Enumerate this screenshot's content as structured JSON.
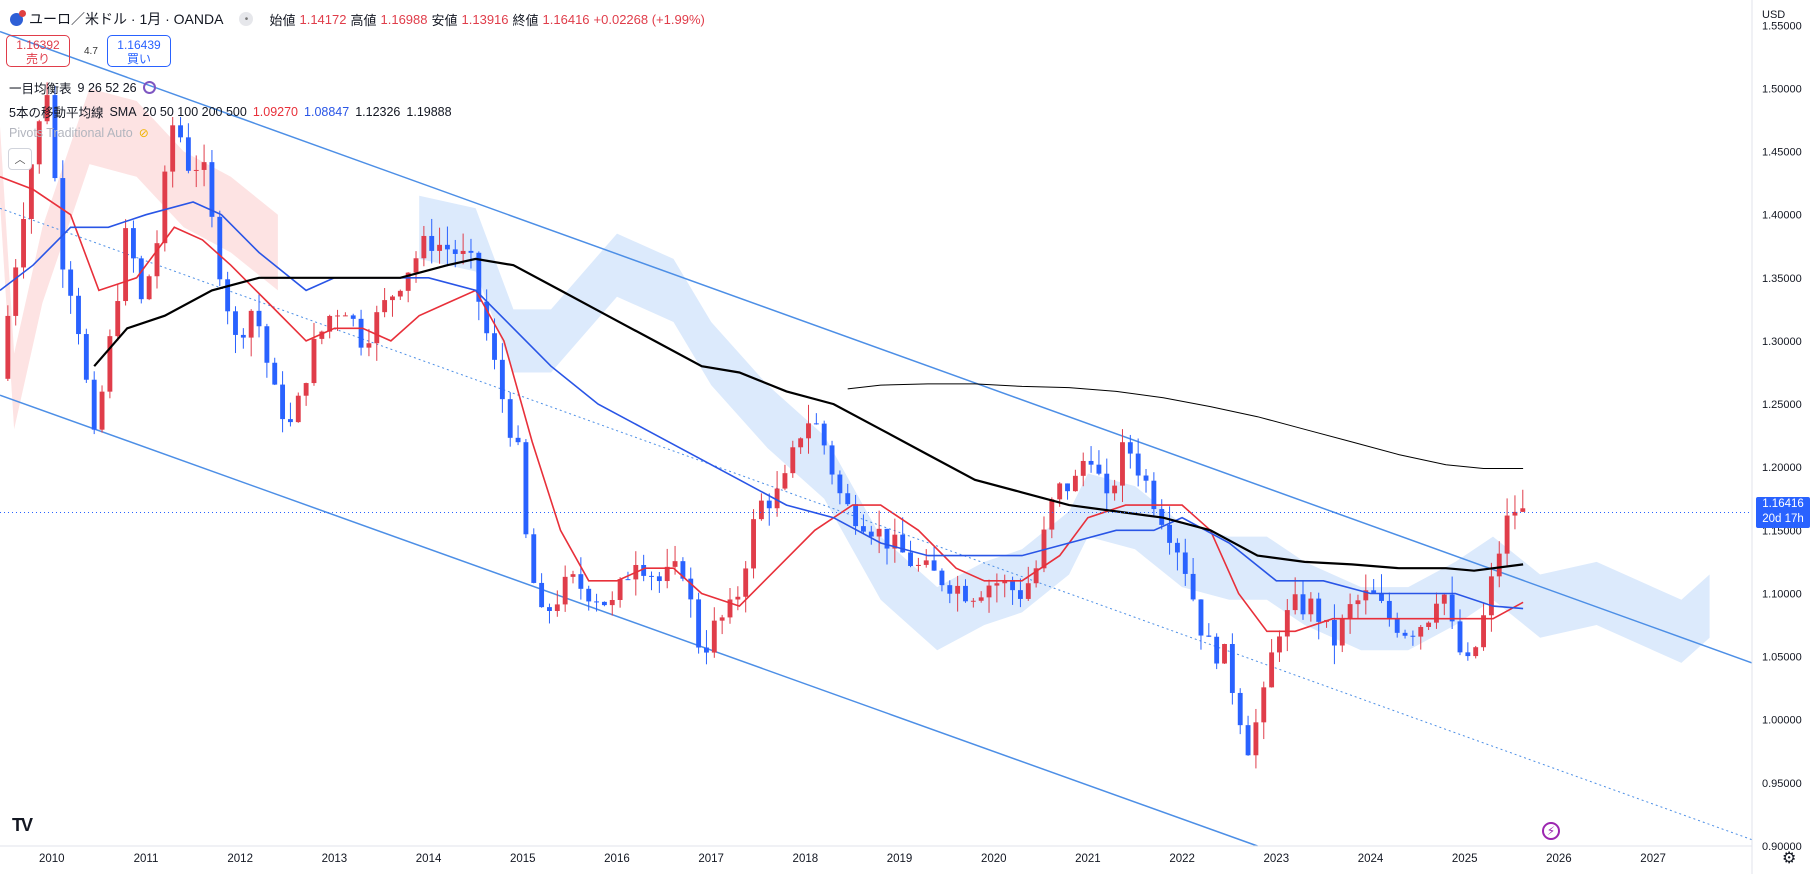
{
  "header": {
    "symbol": "ユーロ／米ドル · 1月 · OANDA",
    "open_label": "始値",
    "open": "1.14172",
    "high_label": "高値",
    "high": "1.16988",
    "low_label": "安値",
    "low": "1.13916",
    "close_label": "終値",
    "close": "1.16416",
    "change": "+0.02268 (+1.99%)"
  },
  "trade": {
    "sell_price": "1.16392",
    "sell_label": "売り",
    "spread": "4.7",
    "buy_price": "1.16439",
    "buy_label": "買い"
  },
  "indicators": {
    "ichimoku_label": "一目均衡表",
    "ichimoku_params": "9 26 52 26",
    "sma_label": "5本の移動平均線",
    "sma_type": "SMA",
    "sma_periods": "20 50 100 200 500",
    "sma_v20": "1.09270",
    "sma_v50": "1.08847",
    "sma_v100": "1.12326",
    "sma_v200": "1.19888",
    "pivots_label": "Pivots Traditional Auto"
  },
  "axis": {
    "currency": "USD"
  },
  "current_price_tag": {
    "price": "1.16416",
    "countdown": "20d 17h"
  },
  "colors": {
    "up": "#e03d4a",
    "down": "#2962ff",
    "sma20": "#e8303a",
    "sma50": "#2955e6",
    "sma100": "#000000",
    "sma200": "#000000",
    "channel": "#4d8fe6",
    "cloud_bull": "#dceafc",
    "cloud_bear": "#fde3e3"
  },
  "chart_data": {
    "type": "candlestick",
    "title": "ユーロ／米ドル · 1月 · OANDA",
    "ylim": [
      0.9,
      1.57
    ],
    "yticks": [
      "1.55000",
      "1.50000",
      "1.45000",
      "1.40000",
      "1.35000",
      "1.30000",
      "1.25000",
      "1.20000",
      "1.15000",
      "1.10000",
      "1.05000",
      "1.00000",
      "0.95000",
      "0.90000"
    ],
    "xticks": [
      "2010",
      "2011",
      "2012",
      "2013",
      "2014",
      "2015",
      "2016",
      "2017",
      "2018",
      "2019",
      "2020",
      "2021",
      "2022",
      "2023",
      "2024",
      "2025",
      "2026",
      "2027"
    ],
    "x_range": [
      2009.45,
      2028.05
    ],
    "close_anchor_points": [
      [
        2009.45,
        1.27
      ],
      [
        2009.55,
        1.33
      ],
      [
        2009.75,
        1.43
      ],
      [
        2009.95,
        1.5
      ],
      [
        2010.1,
        1.37
      ],
      [
        2010.25,
        1.33
      ],
      [
        2010.45,
        1.22
      ],
      [
        2010.6,
        1.29
      ],
      [
        2010.8,
        1.39
      ],
      [
        2010.95,
        1.33
      ],
      [
        2011.1,
        1.37
      ],
      [
        2011.3,
        1.48
      ],
      [
        2011.45,
        1.44
      ],
      [
        2011.6,
        1.44
      ],
      [
        2011.75,
        1.37
      ],
      [
        2011.95,
        1.3
      ],
      [
        2012.15,
        1.33
      ],
      [
        2012.35,
        1.26
      ],
      [
        2012.55,
        1.23
      ],
      [
        2012.75,
        1.29
      ],
      [
        2012.95,
        1.32
      ],
      [
        2013.1,
        1.33
      ],
      [
        2013.3,
        1.3
      ],
      [
        2013.55,
        1.33
      ],
      [
        2013.8,
        1.36
      ],
      [
        2014.0,
        1.38
      ],
      [
        2014.3,
        1.37
      ],
      [
        2014.45,
        1.36
      ],
      [
        2014.6,
        1.31
      ],
      [
        2014.8,
        1.25
      ],
      [
        2014.95,
        1.21
      ],
      [
        2015.05,
        1.13
      ],
      [
        2015.2,
        1.08
      ],
      [
        2015.5,
        1.11
      ],
      [
        2015.75,
        1.1
      ],
      [
        2015.95,
        1.09
      ],
      [
        2016.2,
        1.13
      ],
      [
        2016.45,
        1.11
      ],
      [
        2016.7,
        1.12
      ],
      [
        2016.9,
        1.05
      ],
      [
        2017.0,
        1.07
      ],
      [
        2017.25,
        1.09
      ],
      [
        2017.5,
        1.17
      ],
      [
        2017.75,
        1.18
      ],
      [
        2018.0,
        1.24
      ],
      [
        2018.15,
        1.23
      ],
      [
        2018.4,
        1.17
      ],
      [
        2018.6,
        1.16
      ],
      [
        2018.9,
        1.14
      ],
      [
        2019.2,
        1.12
      ],
      [
        2019.5,
        1.11
      ],
      [
        2019.75,
        1.1
      ],
      [
        2020.0,
        1.11
      ],
      [
        2020.3,
        1.1
      ],
      [
        2020.45,
        1.12
      ],
      [
        2020.65,
        1.18
      ],
      [
        2020.9,
        1.19
      ],
      [
        2021.0,
        1.22
      ],
      [
        2021.2,
        1.17
      ],
      [
        2021.4,
        1.22
      ],
      [
        2021.6,
        1.19
      ],
      [
        2021.8,
        1.16
      ],
      [
        2022.0,
        1.13
      ],
      [
        2022.25,
        1.06
      ],
      [
        2022.45,
        1.05
      ],
      [
        2022.7,
        0.98
      ],
      [
        2022.85,
        1.01
      ],
      [
        2023.0,
        1.07
      ],
      [
        2023.2,
        1.09
      ],
      [
        2023.4,
        1.09
      ],
      [
        2023.6,
        1.06
      ],
      [
        2023.8,
        1.09
      ],
      [
        2024.0,
        1.1
      ],
      [
        2024.2,
        1.08
      ],
      [
        2024.4,
        1.07
      ],
      [
        2024.6,
        1.08
      ],
      [
        2024.75,
        1.11
      ],
      [
        2024.9,
        1.06
      ],
      [
        2025.05,
        1.04
      ],
      [
        2025.2,
        1.08
      ],
      [
        2025.35,
        1.13
      ],
      [
        2025.5,
        1.17
      ],
      [
        2025.6,
        1.16
      ],
      [
        2025.62,
        1.164
      ]
    ],
    "sma20": [
      [
        2009.45,
        1.43
      ],
      [
        2009.8,
        1.42
      ],
      [
        2010.2,
        1.4
      ],
      [
        2010.5,
        1.34
      ],
      [
        2010.9,
        1.35
      ],
      [
        2011.3,
        1.39
      ],
      [
        2011.6,
        1.38
      ],
      [
        2011.9,
        1.36
      ],
      [
        2012.3,
        1.33
      ],
      [
        2012.7,
        1.3
      ],
      [
        2013.0,
        1.31
      ],
      [
        2013.3,
        1.31
      ],
      [
        2013.6,
        1.3
      ],
      [
        2013.9,
        1.32
      ],
      [
        2014.2,
        1.33
      ],
      [
        2014.5,
        1.34
      ],
      [
        2014.8,
        1.3
      ],
      [
        2015.1,
        1.22
      ],
      [
        2015.4,
        1.15
      ],
      [
        2015.7,
        1.11
      ],
      [
        2016.0,
        1.11
      ],
      [
        2016.3,
        1.12
      ],
      [
        2016.6,
        1.12
      ],
      [
        2016.9,
        1.1
      ],
      [
        2017.3,
        1.09
      ],
      [
        2017.7,
        1.12
      ],
      [
        2018.1,
        1.15
      ],
      [
        2018.5,
        1.17
      ],
      [
        2018.8,
        1.17
      ],
      [
        2019.2,
        1.15
      ],
      [
        2019.6,
        1.12
      ],
      [
        2019.9,
        1.11
      ],
      [
        2020.3,
        1.11
      ],
      [
        2020.7,
        1.13
      ],
      [
        2021.0,
        1.16
      ],
      [
        2021.4,
        1.17
      ],
      [
        2021.7,
        1.17
      ],
      [
        2022.0,
        1.17
      ],
      [
        2022.3,
        1.15
      ],
      [
        2022.6,
        1.1
      ],
      [
        2022.9,
        1.07
      ],
      [
        2023.2,
        1.07
      ],
      [
        2023.6,
        1.08
      ],
      [
        2023.9,
        1.08
      ],
      [
        2024.3,
        1.08
      ],
      [
        2024.7,
        1.08
      ],
      [
        2025.0,
        1.08
      ],
      [
        2025.3,
        1.08
      ],
      [
        2025.62,
        1.093
      ]
    ],
    "sma50": [
      [
        2009.45,
        1.34
      ],
      [
        2009.8,
        1.36
      ],
      [
        2010.2,
        1.39
      ],
      [
        2010.6,
        1.39
      ],
      [
        2011.0,
        1.4
      ],
      [
        2011.5,
        1.41
      ],
      [
        2011.8,
        1.4
      ],
      [
        2012.2,
        1.37
      ],
      [
        2012.7,
        1.34
      ],
      [
        2013.0,
        1.35
      ],
      [
        2013.5,
        1.35
      ],
      [
        2014.0,
        1.35
      ],
      [
        2014.5,
        1.34
      ],
      [
        2014.9,
        1.31
      ],
      [
        2015.3,
        1.28
      ],
      [
        2015.8,
        1.25
      ],
      [
        2016.3,
        1.23
      ],
      [
        2016.8,
        1.21
      ],
      [
        2017.3,
        1.19
      ],
      [
        2017.8,
        1.17
      ],
      [
        2018.3,
        1.16
      ],
      [
        2018.8,
        1.14
      ],
      [
        2019.3,
        1.13
      ],
      [
        2019.8,
        1.13
      ],
      [
        2020.3,
        1.13
      ],
      [
        2020.8,
        1.14
      ],
      [
        2021.3,
        1.15
      ],
      [
        2021.7,
        1.15
      ],
      [
        2022.0,
        1.16
      ],
      [
        2022.5,
        1.14
      ],
      [
        2023.0,
        1.11
      ],
      [
        2023.5,
        1.11
      ],
      [
        2024.0,
        1.1
      ],
      [
        2024.5,
        1.1
      ],
      [
        2024.9,
        1.1
      ],
      [
        2025.3,
        1.09
      ],
      [
        2025.62,
        1.088
      ]
    ],
    "sma100": [
      [
        2010.45,
        1.28
      ],
      [
        2010.8,
        1.31
      ],
      [
        2011.2,
        1.32
      ],
      [
        2011.7,
        1.34
      ],
      [
        2012.2,
        1.35
      ],
      [
        2012.7,
        1.35
      ],
      [
        2013.2,
        1.35
      ],
      [
        2013.7,
        1.35
      ],
      [
        2014.2,
        1.36
      ],
      [
        2014.5,
        1.365
      ],
      [
        2014.9,
        1.36
      ],
      [
        2015.4,
        1.34
      ],
      [
        2015.9,
        1.32
      ],
      [
        2016.4,
        1.3
      ],
      [
        2016.9,
        1.28
      ],
      [
        2017.3,
        1.275
      ],
      [
        2017.8,
        1.26
      ],
      [
        2018.3,
        1.25
      ],
      [
        2018.8,
        1.23
      ],
      [
        2019.3,
        1.21
      ],
      [
        2019.8,
        1.19
      ],
      [
        2020.3,
        1.18
      ],
      [
        2020.8,
        1.17
      ],
      [
        2021.3,
        1.165
      ],
      [
        2021.8,
        1.16
      ],
      [
        2022.3,
        1.15
      ],
      [
        2022.8,
        1.13
      ],
      [
        2023.3,
        1.125
      ],
      [
        2023.8,
        1.123
      ],
      [
        2024.3,
        1.12
      ],
      [
        2024.8,
        1.12
      ],
      [
        2025.1,
        1.118
      ],
      [
        2025.62,
        1.123
      ]
    ],
    "sma200": [
      [
        2018.45,
        1.262
      ],
      [
        2018.8,
        1.265
      ],
      [
        2019.3,
        1.266
      ],
      [
        2019.8,
        1.266
      ],
      [
        2020.3,
        1.264
      ],
      [
        2020.8,
        1.263
      ],
      [
        2021.3,
        1.26
      ],
      [
        2021.8,
        1.255
      ],
      [
        2022.3,
        1.248
      ],
      [
        2022.8,
        1.24
      ],
      [
        2023.3,
        1.23
      ],
      [
        2023.8,
        1.22
      ],
      [
        2024.3,
        1.21
      ],
      [
        2024.8,
        1.202
      ],
      [
        2025.2,
        1.199
      ],
      [
        2025.62,
        1.199
      ]
    ],
    "channel_top": [
      [
        2009.45,
        1.545
      ],
      [
        2028.05,
        1.045
      ]
    ],
    "channel_bottom": [
      [
        2009.45,
        1.257
      ],
      [
        2022.8,
        0.9
      ]
    ],
    "channel_mid": [
      [
        2009.45,
        1.405
      ],
      [
        2028.05,
        0.905
      ]
    ],
    "cloud_bull": [
      [
        2013.9,
        1.39
      ],
      [
        2014.5,
        1.38
      ],
      [
        2014.9,
        1.3
      ],
      [
        2015.3,
        1.3
      ],
      [
        2016.0,
        1.36
      ],
      [
        2016.6,
        1.34
      ],
      [
        2017.0,
        1.29
      ],
      [
        2017.6,
        1.24
      ],
      [
        2018.2,
        1.2
      ],
      [
        2018.8,
        1.12
      ],
      [
        2019.4,
        1.08
      ],
      [
        2019.9,
        1.1
      ],
      [
        2020.3,
        1.11
      ],
      [
        2020.8,
        1.14
      ],
      [
        2021.0,
        1.17
      ],
      [
        2021.5,
        1.16
      ],
      [
        2022.0,
        1.13
      ],
      [
        2022.5,
        1.12
      ],
      [
        2022.9,
        1.12
      ],
      [
        2023.3,
        1.1
      ],
      [
        2023.9,
        1.08
      ],
      [
        2024.4,
        1.08
      ],
      [
        2024.9,
        1.1
      ],
      [
        2025.3,
        1.12
      ],
      [
        2025.8,
        1.09
      ],
      [
        2026.4,
        1.1
      ],
      [
        2027.3,
        1.07
      ],
      [
        2027.6,
        1.09
      ]
    ],
    "cloud_bear": [
      [
        2009.45,
        1.44
      ],
      [
        2009.6,
        1.26
      ],
      [
        2009.9,
        1.36
      ],
      [
        2010.4,
        1.47
      ],
      [
        2010.9,
        1.46
      ],
      [
        2011.4,
        1.42
      ],
      [
        2011.9,
        1.4
      ],
      [
        2012.4,
        1.37
      ]
    ],
    "current_price": 1.16416,
    "candles_tag_countdown": "20d 17h"
  }
}
